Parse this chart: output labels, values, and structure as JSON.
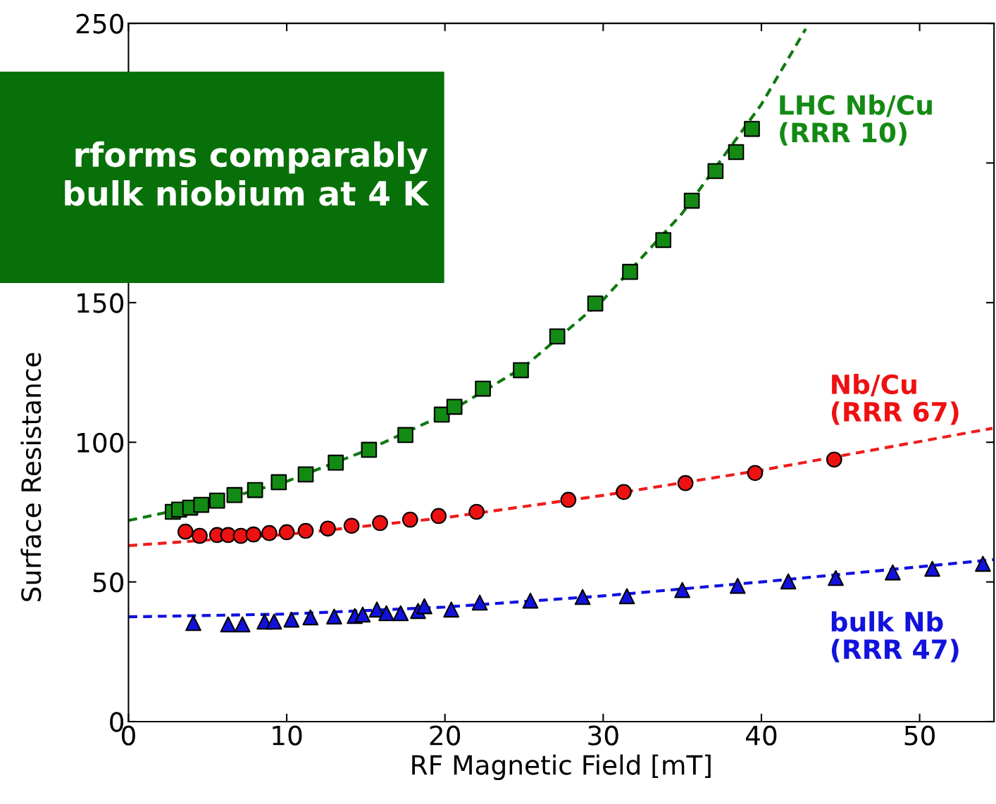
{
  "chart_data": {
    "type": "scatter",
    "xlabel": "RF Magnetic Field [mT]",
    "ylabel": "Surface Resistance",
    "xlim": [
      0,
      54.7
    ],
    "xticks": [
      0,
      10,
      20,
      30,
      40,
      50
    ],
    "ylim": [
      0,
      250
    ],
    "yticks": [
      0,
      50,
      100,
      150,
      {
        "value": 200,
        "label": null
      },
      250
    ],
    "grid": false,
    "legend": false,
    "annotations": [
      "rforms comparably\nbulk niobium at 4 K"
    ],
    "series": [
      {
        "type": "line",
        "color": "#107810",
        "line_style": "dashed",
        "marker": "none",
        "x": [
          0,
          5,
          10,
          15,
          20,
          25,
          30,
          35,
          40,
          42.8
        ],
        "values": [
          72,
          78,
          86,
          97,
          110,
          127,
          151,
          182,
          221,
          248
        ]
      },
      {
        "type": "line",
        "color": "#ee1c1c",
        "line_style": "dashed",
        "marker": "none",
        "x": [
          0,
          10,
          20,
          30,
          40,
          54.6
        ],
        "values": [
          63,
          67,
          73,
          81,
          90,
          105
        ]
      },
      {
        "type": "line",
        "color": "#1010e0",
        "line_style": "dashed",
        "marker": "none",
        "x": [
          0,
          10,
          20,
          30,
          40,
          54.7
        ],
        "values": [
          37.5,
          38.5,
          41,
          45,
          50,
          58
        ]
      },
      {
        "name": "LHC Nb/Cu\n(RRR 10)",
        "color": "#138a13",
        "marker": "square",
        "x": [
          2.8,
          3.2,
          3.9,
          4.6,
          5.6,
          6.7,
          8.0,
          9.5,
          11.2,
          13.1,
          15.2,
          17.5,
          19.8,
          20.6,
          22.4,
          24.8,
          27.1,
          29.5,
          31.7,
          33.8,
          35.6,
          37.1,
          38.4,
          39.4
        ],
        "values": [
          75.1,
          75.9,
          76.6,
          77.6,
          79.1,
          81.1,
          82.9,
          85.7,
          88.5,
          92.7,
          97.3,
          102.6,
          109.9,
          112.7,
          119.2,
          125.8,
          137.9,
          149.7,
          161.0,
          172.4,
          186.5,
          197.1,
          203.9,
          212.2
        ]
      },
      {
        "name": "Nb/Cu\n(RRR 67)",
        "color": "#ee1111",
        "marker": "circle",
        "x": [
          3.6,
          4.5,
          5.6,
          6.3,
          7.1,
          7.9,
          8.9,
          10.0,
          11.2,
          12.6,
          14.1,
          15.9,
          17.8,
          19.6,
          22.0,
          27.8,
          31.3,
          35.2,
          39.6,
          44.6
        ],
        "values": [
          68.0,
          66.5,
          66.8,
          66.8,
          66.5,
          67.0,
          67.5,
          67.8,
          68.3,
          69.1,
          70.1,
          71.1,
          72.3,
          73.6,
          75.1,
          79.4,
          82.2,
          85.4,
          89.0,
          93.8
        ],
        "errors": [
          2,
          2,
          2,
          2,
          2,
          2,
          2,
          2,
          2,
          2,
          2,
          2,
          2,
          2,
          2,
          2,
          2,
          2,
          2,
          2
        ]
      },
      {
        "name": "bulk Nb\n(RRR 47)",
        "color": "#1212dd",
        "marker": "triangle",
        "x": [
          4.1,
          6.3,
          7.2,
          8.6,
          9.2,
          10.3,
          11.5,
          13.0,
          14.3,
          14.8,
          15.7,
          16.3,
          17.2,
          18.3,
          18.7,
          20.4,
          22.2,
          25.4,
          28.7,
          31.5,
          35.0,
          38.5,
          41.7,
          44.7,
          48.3,
          50.8,
          54.0
        ],
        "values": [
          35.3,
          34.8,
          34.8,
          35.8,
          35.8,
          36.5,
          37.3,
          37.6,
          37.8,
          38.3,
          40.1,
          38.8,
          38.8,
          39.6,
          41.3,
          40.1,
          42.6,
          43.3,
          44.6,
          44.9,
          47.1,
          48.6,
          50.2,
          51.4,
          53.4,
          54.7,
          56.5
        ]
      }
    ]
  }
}
